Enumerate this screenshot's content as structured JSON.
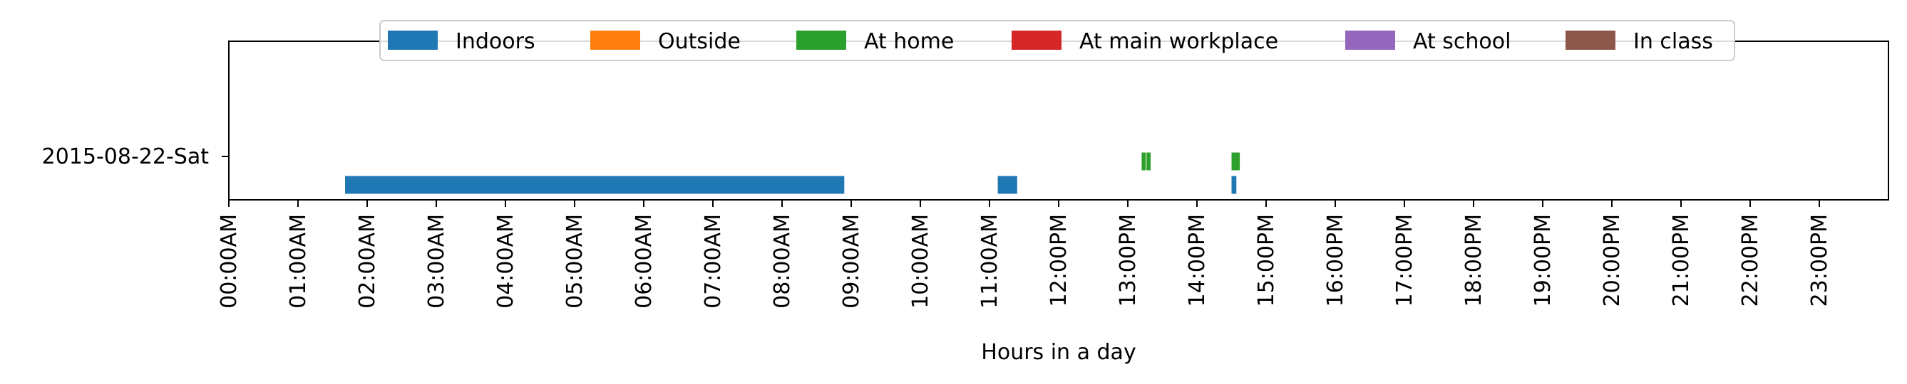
{
  "chart_data": {
    "type": "timeline",
    "title": "",
    "xlabel": "Hours in a day",
    "ylabel": "",
    "xlim": [
      0,
      24
    ],
    "x_ticks": [
      "00:00AM",
      "01:00AM",
      "02:00AM",
      "03:00AM",
      "04:00AM",
      "05:00AM",
      "06:00AM",
      "07:00AM",
      "08:00AM",
      "09:00AM",
      "10:00AM",
      "11:00AM",
      "12:00PM",
      "13:00PM",
      "14:00PM",
      "15:00PM",
      "16:00PM",
      "17:00PM",
      "18:00PM",
      "19:00PM",
      "20:00PM",
      "21:00PM",
      "22:00PM",
      "23:00PM"
    ],
    "y_categories": [
      "2015-08-22-Sat"
    ],
    "legend_position": "top-center",
    "grid": false,
    "series": [
      {
        "name": "Indoors",
        "color": "#1f77b4",
        "intervals": [
          [
            1.68,
            8.9
          ],
          [
            11.12,
            11.4
          ],
          [
            14.5,
            14.57
          ]
        ]
      },
      {
        "name": "Outside",
        "color": "#ff7f0e",
        "intervals": []
      },
      {
        "name": "At home",
        "color": "#2ca02c",
        "intervals": [
          [
            13.2,
            13.26
          ],
          [
            13.27,
            13.33
          ],
          [
            14.5,
            14.62
          ]
        ]
      },
      {
        "name": "At main workplace",
        "color": "#d62728",
        "intervals": []
      },
      {
        "name": "At school",
        "color": "#9467bd",
        "intervals": []
      },
      {
        "name": "In class",
        "color": "#8c564b",
        "intervals": []
      }
    ]
  }
}
